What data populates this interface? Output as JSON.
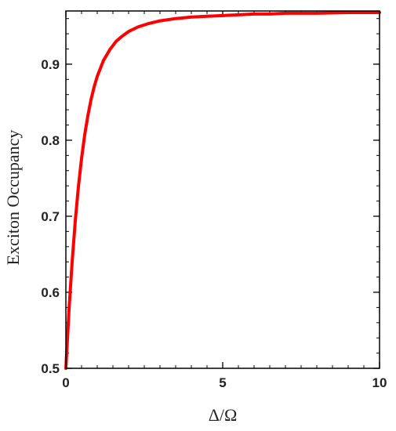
{
  "chart_data": {
    "type": "line",
    "title": "",
    "xlabel": "Δ/Ω",
    "ylabel": "Exciton Occupancy",
    "xlim": [
      0,
      10
    ],
    "ylim": [
      0.5,
      0.97
    ],
    "x_ticks": [
      0,
      5,
      10
    ],
    "y_ticks": [
      0.5,
      0.6,
      0.7,
      0.8,
      0.9
    ],
    "x_tick_labels": [
      "0",
      "5",
      "10"
    ],
    "y_tick_labels": [
      "0.5",
      "0.6",
      "0.7",
      "0.8",
      "0.9"
    ],
    "x_minor_step": 0.5,
    "y_minor_step": 0.02,
    "grid": false,
    "series": [
      {
        "color": "#ff0000",
        "x": [
          0,
          0.1,
          0.2,
          0.3,
          0.4,
          0.5,
          0.6,
          0.7,
          0.8,
          0.9,
          1.0,
          1.2,
          1.4,
          1.6,
          1.8,
          2.0,
          2.3,
          2.6,
          3.0,
          3.5,
          4.0,
          4.5,
          5.0,
          5.5,
          6.0,
          6.5,
          7.0,
          8.0,
          9.0,
          10.0
        ],
        "values": [
          0.5,
          0.577,
          0.64,
          0.694,
          0.739,
          0.776,
          0.807,
          0.832,
          0.853,
          0.87,
          0.884,
          0.905,
          0.919,
          0.93,
          0.937,
          0.943,
          0.949,
          0.953,
          0.957,
          0.96,
          0.962,
          0.963,
          0.964,
          0.965,
          0.966,
          0.966,
          0.967,
          0.967,
          0.968,
          0.968
        ]
      }
    ]
  }
}
